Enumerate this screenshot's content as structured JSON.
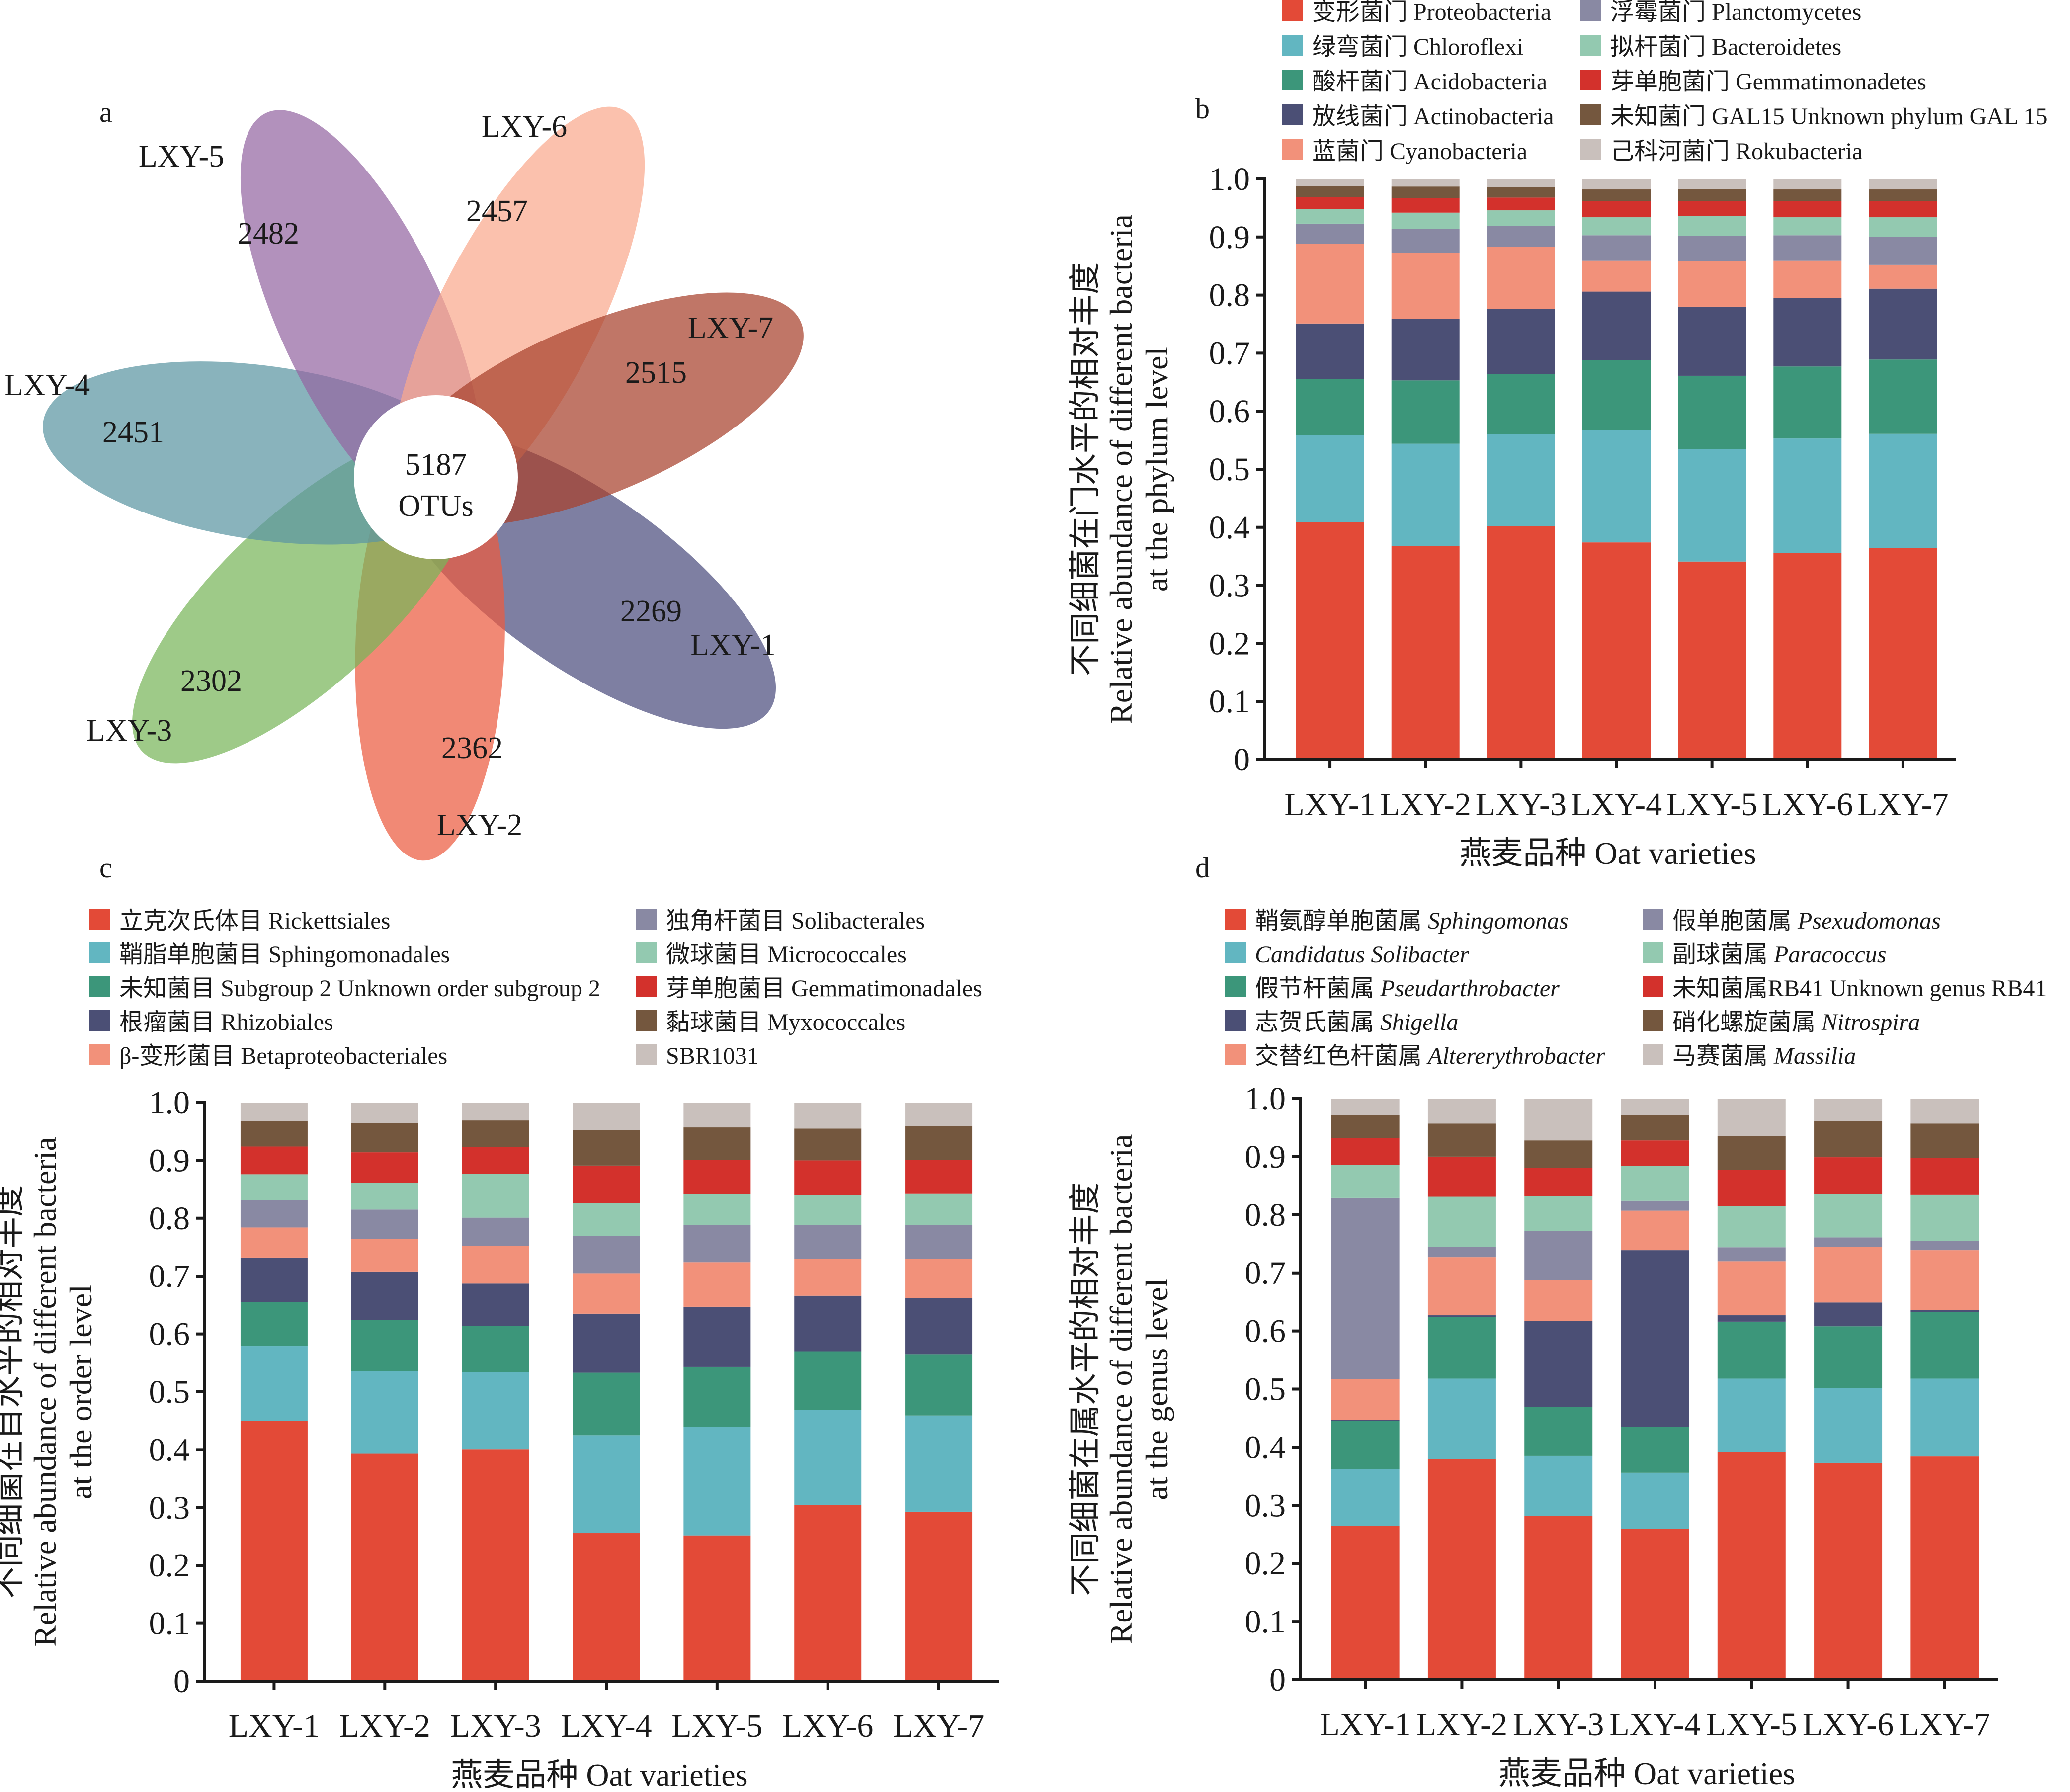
{
  "figure": {
    "panels": [
      "a",
      "b",
      "c",
      "d"
    ]
  },
  "chart_data": [
    {
      "panel": "a",
      "type": "venn",
      "title": "",
      "core": {
        "value": "5187",
        "unit": "OTUs"
      },
      "sets": [
        {
          "name": "LXY-1",
          "unique": "2269",
          "color": "#4c4d7e"
        },
        {
          "name": "LXY-2",
          "unique": "2362",
          "color": "#ec5c40"
        },
        {
          "name": "LXY-3",
          "unique": "2302",
          "color": "#79b65a"
        },
        {
          "name": "LXY-4",
          "unique": "2451",
          "color": "#5b95a2"
        },
        {
          "name": "LXY-5",
          "unique": "2482",
          "color": "#9466a2"
        },
        {
          "name": "LXY-6",
          "unique": "2457",
          "color": "#f9a98d"
        },
        {
          "name": "LXY-7",
          "unique": "2515",
          "color": "#a8412c"
        }
      ]
    },
    {
      "panel": "b",
      "type": "bar",
      "stacked": true,
      "title": "",
      "xlabel": "燕麦品种 Oat varieties",
      "ylabel": [
        "不同细菌在门水平的相对丰度",
        "Relative abundance of different bacteria",
        "at the phylum level"
      ],
      "ylim": [
        0,
        1.0
      ],
      "yticks": [
        "0",
        "0.1",
        "0.2",
        "0.3",
        "0.4",
        "0.5",
        "0.6",
        "0.7",
        "0.8",
        "0.9",
        "1.0"
      ],
      "categories": [
        "LXY-1",
        "LXY-2",
        "LXY-3",
        "LXY-4",
        "LXY-5",
        "LXY-6",
        "LXY-7"
      ],
      "legend_position": "top",
      "series": [
        {
          "name": "变形菌门 Proteobacteria",
          "color": "#e34a37",
          "values": [
            0.409,
            0.368,
            0.402,
            0.374,
            0.341,
            0.356,
            0.364
          ]
        },
        {
          "name": "绿弯菌门 Chloroflexi",
          "color": "#62b6c1",
          "values": [
            0.15,
            0.176,
            0.158,
            0.193,
            0.194,
            0.197,
            0.197
          ]
        },
        {
          "name": "酸杆菌门 Acidobacteria",
          "color": "#3c967a",
          "values": [
            0.096,
            0.109,
            0.104,
            0.121,
            0.126,
            0.124,
            0.128
          ]
        },
        {
          "name": "放线菌门 Actinobacteria",
          "color": "#4b4f75",
          "values": [
            0.096,
            0.106,
            0.112,
            0.118,
            0.119,
            0.118,
            0.122
          ]
        },
        {
          "name": "蓝菌门 Cyanobacteria",
          "color": "#f2917a",
          "values": [
            0.137,
            0.114,
            0.107,
            0.053,
            0.078,
            0.064,
            0.041
          ]
        },
        {
          "name": "浮霉菌门 Planctomycetes",
          "color": "#8989a3",
          "values": [
            0.035,
            0.041,
            0.036,
            0.044,
            0.044,
            0.044,
            0.048
          ]
        },
        {
          "name": "拟杆菌门 Bacteroidetes",
          "color": "#93c9b0",
          "values": [
            0.025,
            0.028,
            0.027,
            0.031,
            0.034,
            0.031,
            0.034
          ]
        },
        {
          "name": "芽单胞菌门 Gemmatimonadetes",
          "color": "#d3312c",
          "values": [
            0.021,
            0.025,
            0.022,
            0.028,
            0.026,
            0.028,
            0.028
          ]
        },
        {
          "name": "未知菌门 GAL15 Unknown phylum GAL 15",
          "color": "#74573e",
          "values": [
            0.019,
            0.02,
            0.018,
            0.02,
            0.021,
            0.02,
            0.02
          ]
        },
        {
          "name": "己科河菌门 Rokubacteria",
          "color": "#c9c0bc",
          "values": [
            0.012,
            0.013,
            0.014,
            0.018,
            0.017,
            0.018,
            0.018
          ]
        }
      ]
    },
    {
      "panel": "c",
      "type": "bar",
      "stacked": true,
      "title": "",
      "xlabel": "燕麦品种 Oat varieties",
      "ylabel": [
        "不同细菌在目水平的相对丰度",
        "Relative abundance of different bacteria",
        "at the order level"
      ],
      "ylim": [
        0,
        1.0
      ],
      "yticks": [
        "0",
        "0.1",
        "0.2",
        "0.3",
        "0.4",
        "0.5",
        "0.6",
        "0.7",
        "0.8",
        "0.9",
        "1.0"
      ],
      "categories": [
        "LXY-1",
        "LXY-2",
        "LXY-3",
        "LXY-4",
        "LXY-5",
        "LXY-6",
        "LXY-7"
      ],
      "legend_position": "top",
      "series": [
        {
          "name": "立克次氏体目 Rickettsiales",
          "color": "#e34a37",
          "values": [
            0.45,
            0.393,
            0.401,
            0.256,
            0.252,
            0.305,
            0.293
          ]
        },
        {
          "name": "鞘脂单胞菌目 Sphingomonadales",
          "color": "#62b6c1",
          "values": [
            0.129,
            0.143,
            0.133,
            0.169,
            0.187,
            0.164,
            0.166
          ]
        },
        {
          "name": "未知菌目 Subgroup 2 Unknown order subgroup 2",
          "color": "#3c967a",
          "values": [
            0.076,
            0.088,
            0.08,
            0.108,
            0.104,
            0.101,
            0.106
          ]
        },
        {
          "name": "根瘤菌目 Rhizobiales",
          "color": "#4b4f75",
          "values": [
            0.077,
            0.084,
            0.073,
            0.102,
            0.104,
            0.096,
            0.097
          ]
        },
        {
          "name": "β-变形菌目 Betaproteobacteriales",
          "color": "#f2917a",
          "values": [
            0.052,
            0.056,
            0.065,
            0.07,
            0.077,
            0.064,
            0.068
          ]
        },
        {
          "name": "独角杆菌目 Solibacterales",
          "color": "#8989a3",
          "values": [
            0.047,
            0.051,
            0.049,
            0.064,
            0.064,
            0.058,
            0.058
          ]
        },
        {
          "name": "微球菌目 Micrococcales",
          "color": "#93c9b0",
          "values": [
            0.045,
            0.046,
            0.076,
            0.057,
            0.054,
            0.053,
            0.055
          ]
        },
        {
          "name": "芽单胞菌目 Gemmatimonadales",
          "color": "#d3312c",
          "values": [
            0.048,
            0.053,
            0.046,
            0.065,
            0.059,
            0.059,
            0.058
          ]
        },
        {
          "name": "黏球菌目 Myxococcales",
          "color": "#74573e",
          "values": [
            0.044,
            0.05,
            0.046,
            0.061,
            0.056,
            0.055,
            0.058
          ]
        },
        {
          "name": "SBR1031",
          "color": "#c9c0bc",
          "values": [
            0.032,
            0.036,
            0.031,
            0.048,
            0.043,
            0.045,
            0.041
          ]
        }
      ]
    },
    {
      "panel": "d",
      "type": "bar",
      "stacked": true,
      "title": "",
      "xlabel": "燕麦品种 Oat varieties",
      "ylabel": [
        "不同细菌在属水平的相对丰度",
        "Relative abundance of different bacteria",
        "at the genus level"
      ],
      "ylim": [
        0,
        1.0
      ],
      "yticks": [
        "0",
        "0.1",
        "0.2",
        "0.3",
        "0.4",
        "0.5",
        "0.6",
        "0.7",
        "0.8",
        "0.9",
        "1.0"
      ],
      "categories": [
        "LXY-1",
        "LXY-2",
        "LXY-3",
        "LXY-4",
        "LXY-5",
        "LXY-6",
        "LXY-7"
      ],
      "legend_position": "top",
      "series": [
        {
          "name_cn": "鞘氨醇单胞菌属 ",
          "name_it": "Sphingomonas",
          "color": "#e34a37",
          "values": [
            0.265,
            0.379,
            0.282,
            0.26,
            0.391,
            0.373,
            0.384
          ]
        },
        {
          "name_cn": "",
          "name_it": "Candidatus Solibacter",
          "color": "#62b6c1",
          "values": [
            0.097,
            0.139,
            0.103,
            0.096,
            0.127,
            0.129,
            0.134
          ]
        },
        {
          "name_cn": "假节杆菌属 ",
          "name_it": "Pseudarthrobacter",
          "color": "#3c967a",
          "values": [
            0.083,
            0.106,
            0.084,
            0.079,
            0.098,
            0.106,
            0.115
          ]
        },
        {
          "name_cn": "志贺氏菌属 ",
          "name_it": "Shigella",
          "color": "#4b4f75",
          "values": [
            0.002,
            0.003,
            0.148,
            0.304,
            0.011,
            0.041,
            0.003
          ]
        },
        {
          "name_cn": "交替红色杆菌属 ",
          "name_it": "Altererythrobacter",
          "color": "#f2917a",
          "values": [
            0.07,
            0.1,
            0.07,
            0.068,
            0.093,
            0.096,
            0.103
          ]
        },
        {
          "name_cn": "假单胞菌属 ",
          "name_it": "Psexudomonas",
          "color": "#8989a3",
          "values": [
            0.312,
            0.018,
            0.085,
            0.017,
            0.024,
            0.016,
            0.016
          ]
        },
        {
          "name_cn": "副球菌属 ",
          "name_it": "Paracoccus",
          "color": "#93c9b0",
          "values": [
            0.057,
            0.086,
            0.06,
            0.06,
            0.071,
            0.075,
            0.08
          ]
        },
        {
          "name_cn": "未知菌属RB41 Unknown genus RB41",
          "name_it": "",
          "color": "#d3312c",
          "values": [
            0.046,
            0.069,
            0.049,
            0.044,
            0.062,
            0.063,
            0.063
          ]
        },
        {
          "name_cn": "硝化螺旋菌属 ",
          "name_it": "Nitrospira",
          "color": "#74573e",
          "values": [
            0.039,
            0.057,
            0.047,
            0.043,
            0.058,
            0.062,
            0.059
          ]
        },
        {
          "name_cn": "马赛菌属 ",
          "name_it": "Massilia",
          "color": "#c9c0bc",
          "values": [
            0.029,
            0.043,
            0.072,
            0.029,
            0.065,
            0.039,
            0.043
          ]
        }
      ]
    }
  ]
}
